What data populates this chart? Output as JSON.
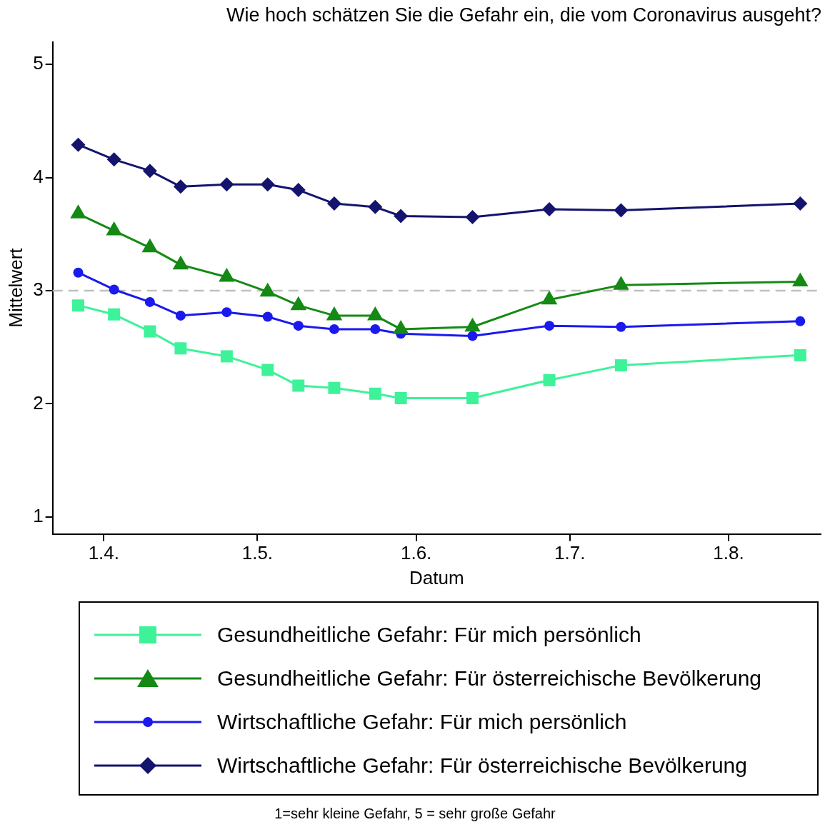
{
  "chart_data": {
    "type": "line",
    "title": "Wie hoch schätzen Sie die Gefahr ein, die vom Coronavirus ausgeht?",
    "xlabel": "Datum",
    "ylabel": "Mittelwert",
    "x": [
      "--03-27",
      "--04-03",
      "--04-10",
      "--04-16",
      "--04-25",
      "--05-03",
      "--05-09",
      "--05-16",
      "--05-24",
      "--05-29",
      "--06-12",
      "--06-27",
      "--07-11",
      "--08-15"
    ],
    "series": [
      {
        "name": "Gesundheitliche Gefahr: Für mich persönlich",
        "color": "#3ef29a",
        "marker": "square",
        "values": [
          2.87,
          2.79,
          2.64,
          2.49,
          2.42,
          2.3,
          2.16,
          2.14,
          2.09,
          2.05,
          2.05,
          2.21,
          2.34,
          2.43
        ]
      },
      {
        "name": "Gesundheitliche Gefahr: Für österreichische Bevölkerung",
        "color": "#148a14",
        "marker": "triangle",
        "values": [
          3.68,
          3.53,
          3.38,
          3.23,
          3.12,
          2.99,
          2.87,
          2.78,
          2.78,
          2.66,
          2.68,
          2.92,
          3.05,
          3.08
        ]
      },
      {
        "name": "Wirtschaftliche Gefahr: Für mich persönlich",
        "color": "#1a1aee",
        "marker": "circle",
        "values": [
          3.16,
          3.01,
          2.9,
          2.78,
          2.81,
          2.77,
          2.69,
          2.66,
          2.66,
          2.62,
          2.6,
          2.69,
          2.68,
          2.73
        ]
      },
      {
        "name": "Wirtschaftliche Gefahr: Für österreichische Bevölkerung",
        "color": "#14146e",
        "marker": "diamond",
        "values": [
          4.29,
          4.16,
          4.06,
          3.92,
          3.94,
          3.94,
          3.89,
          3.77,
          3.74,
          3.66,
          3.65,
          3.72,
          3.71,
          3.77
        ]
      }
    ],
    "xlim": [
      "--03-22",
      "--08-19"
    ],
    "xticks": [
      {
        "value": "--04-01",
        "label": "1.4."
      },
      {
        "value": "--05-01",
        "label": "1.5."
      },
      {
        "value": "--06-01",
        "label": "1.6."
      },
      {
        "value": "--07-01",
        "label": "1.7."
      },
      {
        "value": "--08-01",
        "label": "1.8."
      }
    ],
    "ylim": [
      0.85,
      5.2
    ],
    "yticks": [
      1,
      2,
      3,
      4,
      5
    ],
    "ref_lines": [
      {
        "axis": "y",
        "value": 3,
        "color": "#c0c0c0",
        "line_style": "dashed"
      }
    ],
    "grid": false,
    "legend": "bottom",
    "line_style": "solid",
    "annotations": [
      "1=sehr kleine Gefahr, 5 = sehr große Gefahr"
    ]
  }
}
